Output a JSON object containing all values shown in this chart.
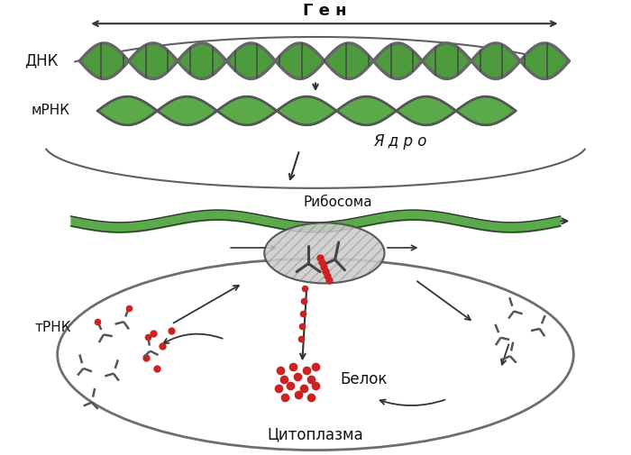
{
  "title": "",
  "background_color": "#ffffff",
  "labels": {
    "gen": "Г е н",
    "dnk": "ДНК",
    "mrna": "мРНК",
    "yadro": "Я д р о",
    "ribosome": "Рибосома",
    "trna": "тРНК",
    "belok": "Белок",
    "cytoplasm": "Цитоплазма"
  },
  "colors": {
    "dna_green": "#4a9a3a",
    "dna_gray": "#888888",
    "mrna_green": "#5aaa4a",
    "arrow": "#333333",
    "red_dots": "#cc2222",
    "ribosome_fill": "#dddddd",
    "trna_gray": "#666666",
    "text": "#111111",
    "nucleus_border": "#333333",
    "cell_border": "#555555"
  }
}
